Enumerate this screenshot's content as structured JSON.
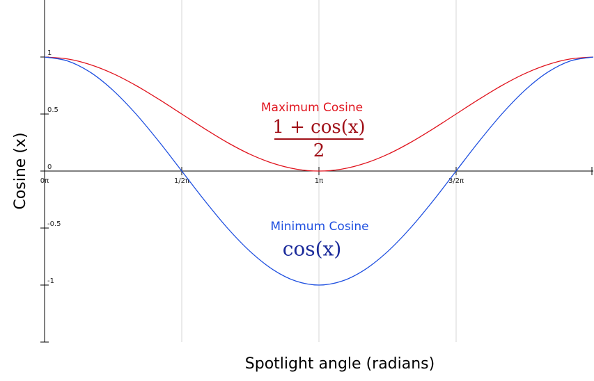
{
  "chart_data": {
    "type": "line",
    "x_label": "Spotlight angle (radians)",
    "y_label": "Cosine (x)",
    "x": [
      0,
      0.262,
      0.524,
      0.785,
      1.047,
      1.309,
      1.571,
      1.833,
      2.094,
      2.356,
      2.618,
      2.88,
      3.142,
      3.403,
      3.665,
      3.927,
      4.189,
      4.451,
      4.712,
      4.974,
      5.236,
      5.498,
      5.76,
      6.021,
      6.283
    ],
    "series": [
      {
        "name": "Maximum Cosine",
        "color": "#e0141e",
        "values": [
          1,
          0.983,
          0.933,
          0.854,
          0.75,
          0.629,
          0.5,
          0.371,
          0.25,
          0.146,
          0.067,
          0.017,
          0,
          0.017,
          0.067,
          0.146,
          0.25,
          0.371,
          0.5,
          0.629,
          0.75,
          0.854,
          0.933,
          0.983,
          1
        ]
      },
      {
        "name": "Minimum Cosine",
        "color": "#1e4fe0",
        "values": [
          1,
          0.966,
          0.866,
          0.707,
          0.5,
          0.259,
          0,
          -0.259,
          -0.5,
          -0.707,
          -0.866,
          -0.966,
          -1,
          -0.966,
          -0.866,
          -0.707,
          -0.5,
          -0.259,
          0,
          0.259,
          0.5,
          0.707,
          0.866,
          0.966,
          1
        ]
      }
    ],
    "annotations": [
      {
        "text": "Maximum Cosine",
        "color": "#e0141e"
      },
      {
        "text": "1 + cos(x)",
        "color": "#a01018"
      },
      {
        "text": "2",
        "color": "#a01018"
      },
      {
        "text": "Minimum Cosine",
        "color": "#1e4fe0"
      },
      {
        "text": "cos(x)",
        "color": "#1a2a9a"
      }
    ],
    "xlim": [
      0,
      6.2832
    ],
    "ylim": [
      -1.5,
      1.5
    ],
    "xticks": [
      {
        "value": 0,
        "label": "0π"
      },
      {
        "value": 1.5708,
        "label": "1/2π"
      },
      {
        "value": 3.1416,
        "label": "1π"
      },
      {
        "value": 4.7124,
        "label": "3/2π"
      }
    ],
    "yticks": [
      1,
      0.5,
      0,
      -0.5,
      -1
    ],
    "grid": true
  }
}
